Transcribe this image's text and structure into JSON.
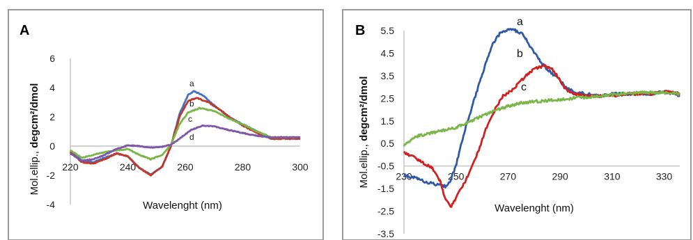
{
  "chart_data": [
    {
      "panel": "A",
      "type": "line",
      "xlabel": "Wavelenght (nm)",
      "ylabel_prefix": "Mol.ellip., ",
      "ylabel_bold": "degcm²/dmol",
      "xlim": [
        220,
        300
      ],
      "ylim": [
        -4,
        6
      ],
      "xticks": [
        220,
        240,
        260,
        280,
        300
      ],
      "yticks": [
        -4,
        -2,
        0,
        2,
        4,
        6
      ],
      "series": [
        {
          "name": "a",
          "color": "#4472c4",
          "points": [
            [
              220,
              -0.3
            ],
            [
              224,
              -1.0
            ],
            [
              228,
              -1.1
            ],
            [
              232,
              -0.8
            ],
            [
              236,
              -0.5
            ],
            [
              240,
              -0.7
            ],
            [
              244,
              -1.5
            ],
            [
              248,
              -1.95
            ],
            [
              252,
              -1.4
            ],
            [
              255,
              0.0
            ],
            [
              258,
              2.2
            ],
            [
              261,
              3.5
            ],
            [
              263,
              3.75
            ],
            [
              266,
              3.5
            ],
            [
              270,
              2.8
            ],
            [
              275,
              2.0
            ],
            [
              280,
              1.5
            ],
            [
              285,
              1.0
            ],
            [
              290,
              0.5
            ],
            [
              295,
              0.6
            ],
            [
              300,
              0.5
            ]
          ]
        },
        {
          "name": "b",
          "color": "#c0392b",
          "points": [
            [
              220,
              -0.4
            ],
            [
              224,
              -1.1
            ],
            [
              228,
              -1.2
            ],
            [
              232,
              -0.9
            ],
            [
              236,
              -0.5
            ],
            [
              240,
              -0.7
            ],
            [
              244,
              -1.5
            ],
            [
              248,
              -2.0
            ],
            [
              252,
              -1.4
            ],
            [
              255,
              0.0
            ],
            [
              258,
              2.0
            ],
            [
              261,
              3.1
            ],
            [
              264,
              3.3
            ],
            [
              268,
              3.0
            ],
            [
              272,
              2.5
            ],
            [
              276,
              1.9
            ],
            [
              280,
              1.4
            ],
            [
              285,
              0.9
            ],
            [
              290,
              0.5
            ],
            [
              295,
              0.5
            ],
            [
              300,
              0.5
            ]
          ]
        },
        {
          "name": "c",
          "color": "#7ab648",
          "points": [
            [
              220,
              -0.3
            ],
            [
              224,
              -0.8
            ],
            [
              228,
              -0.6
            ],
            [
              232,
              -0.4
            ],
            [
              236,
              -0.3
            ],
            [
              240,
              -0.2
            ],
            [
              244,
              -0.6
            ],
            [
              248,
              -0.9
            ],
            [
              252,
              -0.6
            ],
            [
              255,
              0.1
            ],
            [
              258,
              1.5
            ],
            [
              261,
              2.3
            ],
            [
              265,
              2.6
            ],
            [
              270,
              2.4
            ],
            [
              275,
              1.9
            ],
            [
              280,
              1.5
            ],
            [
              285,
              1.0
            ],
            [
              290,
              0.6
            ],
            [
              295,
              0.6
            ],
            [
              300,
              0.6
            ]
          ]
        },
        {
          "name": "d",
          "color": "#7e57a8",
          "points": [
            [
              220,
              -0.5
            ],
            [
              224,
              -1.0
            ],
            [
              228,
              -0.9
            ],
            [
              232,
              -0.6
            ],
            [
              236,
              -0.2
            ],
            [
              240,
              0.05
            ],
            [
              244,
              0.0
            ],
            [
              248,
              -0.1
            ],
            [
              252,
              -0.05
            ],
            [
              255,
              0.1
            ],
            [
              258,
              0.5
            ],
            [
              262,
              1.1
            ],
            [
              266,
              1.4
            ],
            [
              270,
              1.35
            ],
            [
              275,
              1.1
            ],
            [
              280,
              0.9
            ],
            [
              285,
              0.7
            ],
            [
              290,
              0.6
            ],
            [
              295,
              0.6
            ],
            [
              300,
              0.6
            ]
          ]
        }
      ]
    },
    {
      "panel": "B",
      "type": "line",
      "xlabel": "Wavelenght (nm)",
      "ylabel_prefix": "Mol.ellip., ",
      "ylabel_bold": "degcm²/dmol",
      "xlim": [
        230,
        336
      ],
      "ylim": [
        -3.5,
        5.5
      ],
      "xticks": [
        230,
        250,
        270,
        290,
        310,
        330
      ],
      "yticks": [
        5.5,
        4.5,
        3.5,
        2.5,
        1.5,
        0.5,
        -0.5,
        -1.5,
        -2.5,
        -3.5
      ],
      "series": [
        {
          "name": "a",
          "color": "#2e5aa8",
          "points": [
            [
              230,
              -0.9
            ],
            [
              234,
              -1.0
            ],
            [
              238,
              -1.2
            ],
            [
              242,
              -1.3
            ],
            [
              246,
              -1.4
            ],
            [
              248,
              -1.1
            ],
            [
              250,
              -0.5
            ],
            [
              252,
              0.5
            ],
            [
              255,
              1.7
            ],
            [
              258,
              2.8
            ],
            [
              261,
              3.9
            ],
            [
              264,
              4.9
            ],
            [
              267,
              5.4
            ],
            [
              270,
              5.55
            ],
            [
              273,
              5.5
            ],
            [
              276,
              5.3
            ],
            [
              279,
              4.7
            ],
            [
              282,
              4.2
            ],
            [
              285,
              3.8
            ],
            [
              288,
              3.5
            ],
            [
              290,
              3.3
            ],
            [
              292,
              3.0
            ],
            [
              295,
              2.8
            ],
            [
              300,
              2.7
            ],
            [
              305,
              2.6
            ],
            [
              310,
              2.7
            ],
            [
              315,
              2.7
            ],
            [
              320,
              2.7
            ],
            [
              325,
              2.7
            ],
            [
              330,
              2.8
            ],
            [
              336,
              2.6
            ]
          ]
        },
        {
          "name": "b",
          "color": "#d02020",
          "points": [
            [
              230,
              0.1
            ],
            [
              232,
              0.0
            ],
            [
              235,
              -0.2
            ],
            [
              238,
              -0.4
            ],
            [
              241,
              -0.6
            ],
            [
              244,
              -1.2
            ],
            [
              246,
              -2.0
            ],
            [
              248,
              -2.3
            ],
            [
              250,
              -1.9
            ],
            [
              253,
              -1.3
            ],
            [
              256,
              -0.6
            ],
            [
              259,
              0.3
            ],
            [
              262,
              1.3
            ],
            [
              265,
              2.0
            ],
            [
              268,
              2.6
            ],
            [
              272,
              2.9
            ],
            [
              276,
              3.4
            ],
            [
              280,
              3.8
            ],
            [
              284,
              3.95
            ],
            [
              287,
              3.8
            ],
            [
              290,
              3.3
            ],
            [
              292,
              2.9
            ],
            [
              295,
              2.7
            ],
            [
              300,
              2.6
            ],
            [
              305,
              2.6
            ],
            [
              310,
              2.6
            ],
            [
              315,
              2.7
            ],
            [
              320,
              2.7
            ],
            [
              325,
              2.7
            ],
            [
              330,
              2.8
            ],
            [
              336,
              2.7
            ]
          ]
        },
        {
          "name": "c",
          "color": "#7ab648",
          "points": [
            [
              230,
              0.4
            ],
            [
              234,
              0.8
            ],
            [
              238,
              0.9
            ],
            [
              242,
              1.0
            ],
            [
              246,
              1.1
            ],
            [
              250,
              1.2
            ],
            [
              254,
              1.4
            ],
            [
              258,
              1.6
            ],
            [
              262,
              1.8
            ],
            [
              266,
              2.0
            ],
            [
              270,
              2.15
            ],
            [
              275,
              2.3
            ],
            [
              280,
              2.35
            ],
            [
              285,
              2.4
            ],
            [
              290,
              2.45
            ],
            [
              295,
              2.5
            ],
            [
              300,
              2.55
            ],
            [
              305,
              2.6
            ],
            [
              310,
              2.65
            ],
            [
              315,
              2.7
            ],
            [
              320,
              2.75
            ],
            [
              325,
              2.75
            ],
            [
              330,
              2.75
            ],
            [
              336,
              2.7
            ]
          ]
        }
      ]
    }
  ],
  "panels": {
    "a": {
      "label": "A"
    },
    "b": {
      "label": "B"
    }
  }
}
